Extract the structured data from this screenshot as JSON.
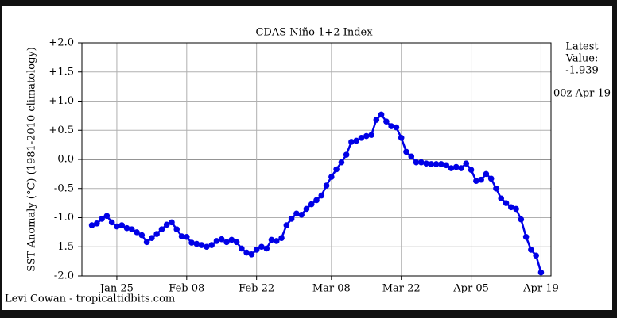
{
  "chart_data": {
    "type": "line",
    "title": "CDAS Niño 1+2 Index",
    "y_label": "SST Anomaly (°C) (1981-2010 climatology)",
    "annotation_lines": [
      "Latest",
      "Value:",
      "-1.939"
    ],
    "annotation_time": "00z Apr 19",
    "credit": "Levi Cowan - tropicaltidbits.com",
    "x": [
      "Jan 20",
      "Jan 21",
      "Jan 22",
      "Jan 23",
      "Jan 24",
      "Jan 25",
      "Jan 26",
      "Jan 27",
      "Jan 28",
      "Jan 29",
      "Jan 30",
      "Jan 31",
      "Feb 01",
      "Feb 02",
      "Feb 03",
      "Feb 04",
      "Feb 05",
      "Feb 06",
      "Feb 07",
      "Feb 08",
      "Feb 09",
      "Feb 10",
      "Feb 11",
      "Feb 12",
      "Feb 13",
      "Feb 14",
      "Feb 15",
      "Feb 16",
      "Feb 17",
      "Feb 18",
      "Feb 19",
      "Feb 20",
      "Feb 21",
      "Feb 22",
      "Feb 23",
      "Feb 24",
      "Feb 25",
      "Feb 26",
      "Feb 27",
      "Feb 28",
      "Feb 29",
      "Mar 01",
      "Mar 02",
      "Mar 03",
      "Mar 04",
      "Mar 05",
      "Mar 06",
      "Mar 07",
      "Mar 08",
      "Mar 09",
      "Mar 10",
      "Mar 11",
      "Mar 12",
      "Mar 13",
      "Mar 14",
      "Mar 15",
      "Mar 16",
      "Mar 17",
      "Mar 18",
      "Mar 19",
      "Mar 20",
      "Mar 21",
      "Mar 22",
      "Mar 23",
      "Mar 24",
      "Mar 25",
      "Mar 26",
      "Mar 27",
      "Mar 28",
      "Mar 29",
      "Mar 30",
      "Mar 31",
      "Apr 01",
      "Apr 02",
      "Apr 03",
      "Apr 04",
      "Apr 05",
      "Apr 06",
      "Apr 07",
      "Apr 08",
      "Apr 09",
      "Apr 10",
      "Apr 11",
      "Apr 12",
      "Apr 13",
      "Apr 14",
      "Apr 15",
      "Apr 16",
      "Apr 17",
      "Apr 18",
      "Apr 19"
    ],
    "series": [
      {
        "name": "Niño 1+2",
        "color": "#0000e6",
        "values": [
          -1.13,
          -1.1,
          -1.02,
          -0.97,
          -1.08,
          -1.15,
          -1.13,
          -1.18,
          -1.2,
          -1.25,
          -1.3,
          -1.42,
          -1.35,
          -1.28,
          -1.2,
          -1.12,
          -1.08,
          -1.2,
          -1.32,
          -1.33,
          -1.43,
          -1.45,
          -1.47,
          -1.5,
          -1.47,
          -1.4,
          -1.37,
          -1.42,
          -1.38,
          -1.42,
          -1.53,
          -1.6,
          -1.63,
          -1.55,
          -1.5,
          -1.53,
          -1.38,
          -1.4,
          -1.35,
          -1.13,
          -1.02,
          -0.93,
          -0.95,
          -0.85,
          -0.77,
          -0.7,
          -0.62,
          -0.45,
          -0.3,
          -0.17,
          -0.05,
          0.08,
          0.3,
          0.32,
          0.37,
          0.4,
          0.42,
          0.68,
          0.77,
          0.65,
          0.57,
          0.55,
          0.37,
          0.13,
          0.05,
          -0.05,
          -0.05,
          -0.07,
          -0.08,
          -0.08,
          -0.08,
          -0.1,
          -0.15,
          -0.13,
          -0.15,
          -0.07,
          -0.18,
          -0.37,
          -0.35,
          -0.25,
          -0.33,
          -0.5,
          -0.67,
          -0.75,
          -0.82,
          -0.85,
          -1.03,
          -1.33,
          -1.55,
          -1.65,
          -1.939
        ]
      }
    ],
    "xlim": [
      "Jan 18",
      "Apr 21"
    ],
    "xticks": [
      "Jan 25",
      "Feb 08",
      "Feb 22",
      "Mar 08",
      "Mar 22",
      "Apr 05",
      "Apr 19"
    ],
    "ylim": [
      -2,
      2
    ],
    "yticks": [
      {
        "value": -2,
        "label": "-2.0"
      },
      -1.5,
      {
        "value": -1,
        "label": "-1.0"
      },
      -0.5,
      {
        "value": 0,
        "label": "0.0"
      },
      {
        "value": 0.5,
        "label": "+0.5"
      },
      {
        "value": 1,
        "label": "+1.0"
      },
      {
        "value": 1.5,
        "label": "+1.5"
      },
      {
        "value": 2,
        "label": "+2.0"
      }
    ],
    "grid": true
  }
}
